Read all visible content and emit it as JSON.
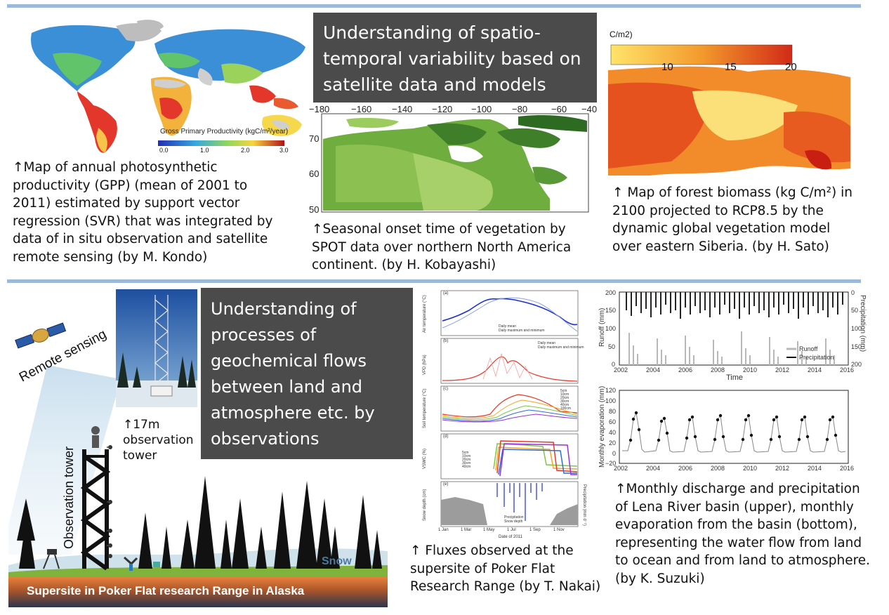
{
  "top": {
    "title_lines": [
      "Understanding of spatio-",
      "temporal variability based on",
      "satellite data and models"
    ],
    "gpp": {
      "legend_title": "Gross Primary Productivity (kgC/m²/year)",
      "legend_ticks": [
        "0.0",
        "1.0",
        "2.0",
        "3.0"
      ],
      "caption_lines": [
        "↑Map of annual photosynthetic",
        "productivity (GPP) (mean of 2001 to",
        "2011) estimated by support vector",
        "regression (SVR) that was integrated by",
        "data of in situ observation and satellite",
        "remote sensing (by M. Kondo)"
      ]
    },
    "spot": {
      "lon_ticks": [
        "−180",
        "−160",
        "−140",
        "−120",
        "−100",
        "−80",
        "−60",
        "−40"
      ],
      "lat_ticks": [
        "70",
        "60",
        "50"
      ],
      "caption_lines": [
        "↑Seasonal onset time of vegetation by",
        "SPOT data over northern North America",
        "continent. (by H. Kobayashi)"
      ]
    },
    "biomass": {
      "legend_unit": "C/m2)",
      "legend_ticks": [
        "10",
        "15",
        "20"
      ],
      "caption_lines": [
        "↑ Map of forest biomass (kg C/m²) in",
        "2100 projected to RCP8.5 by the",
        "dynamic global vegetation model",
        "over eastern Siberia. (by H. Sato)"
      ]
    }
  },
  "bottom": {
    "title_lines": [
      "Understanding of",
      "processes of",
      "geochemical flows",
      "between land and",
      "atmosphere etc. by",
      "observations"
    ],
    "tower_photo_caption": [
      "↑17m",
      "observation",
      "tower"
    ],
    "illustration": {
      "remote_sensing_label": "Remote sensing",
      "tower_label": "Observation tower",
      "snow_label": "Snow",
      "banner": "Supersite in Poker Flat research Range in Alaska"
    },
    "fluxes": {
      "panel_labels": [
        "(a)",
        "(b)",
        "(c)",
        "(d)",
        "(e)"
      ],
      "ylabels": [
        "Air temperature (°C)",
        "VPD (hPa)",
        "Soil temperature (°C)",
        "VSWC (%)",
        "Snow depth (cm)"
      ],
      "right_ylabel": "Precipitation (mm d⁻¹)",
      "x_ticks": [
        "1 Jan",
        "1 Mar",
        "1 May",
        "1 Jul",
        "1 Sep",
        "1 Nov"
      ],
      "xlabel": "Date of 2011",
      "legend_a": [
        "Daily mean",
        "Daily maximum and minimum"
      ],
      "legend_b": [
        "Daily mean",
        "Daily maximum and minimum"
      ],
      "legend_c": [
        "5cm",
        "10cm",
        "20cm",
        "30cm",
        "40cm",
        "100cm"
      ],
      "legend_d": [
        "5cm",
        "10cm",
        "20cm",
        "30cm",
        "40cm"
      ],
      "legend_e": [
        "Precipitation",
        "Snow depth"
      ],
      "caption_lines": [
        "↑ Fluxes observed at the",
        "supersite of Poker Flat",
        "Research Range (by T. Nakai)"
      ]
    },
    "lena": {
      "upper_ylabel": "Runoff (mm)",
      "upper_ylabel_right": "Precipitation (mm)",
      "upper_yticks": [
        "200",
        "150",
        "100",
        "50",
        "0"
      ],
      "upper_yticks_right": [
        "0",
        "50",
        "100",
        "150",
        "200"
      ],
      "x_ticks": [
        "2002",
        "2004",
        "2006",
        "2008",
        "2010",
        "2012",
        "2014",
        "2016"
      ],
      "upper_legend": [
        "Runoff",
        "Precipitation"
      ],
      "xlabel": "Time",
      "lower_ylabel": "Monthly evaporation (mm)",
      "lower_yticks": [
        "120",
        "100",
        "80",
        "60",
        "40",
        "20",
        "0",
        "−20"
      ],
      "caption_lines": [
        "↑Monthly discharge and precipitation",
        "of Lena River basin (upper), monthly",
        "evaporation from the basin (bottom),",
        "representing the water flow from land",
        "to ocean and from land to atmosphere.",
        "(by K. Suzuki)"
      ]
    }
  },
  "colors": {
    "rule": "#9cb9db",
    "dark_box": "#4b4b4b",
    "banner_top": "#e8803a",
    "banner_bottom": "#2b3550"
  }
}
